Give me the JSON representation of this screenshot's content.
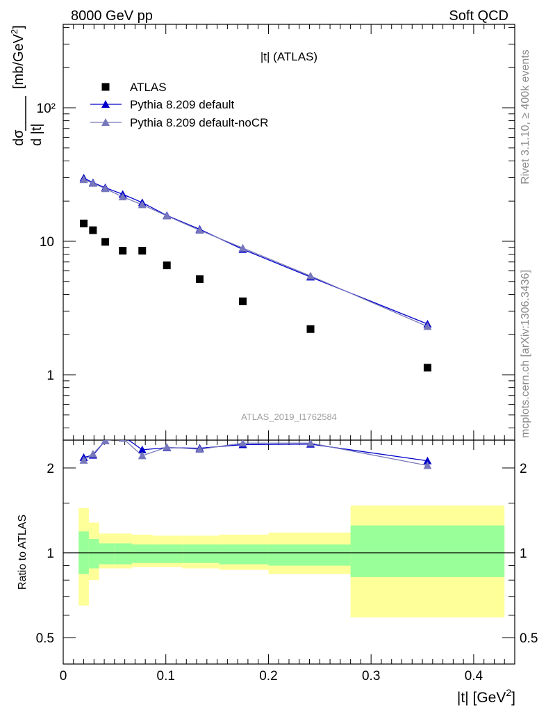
{
  "header": {
    "left": "8000 GeV pp",
    "right": "Soft QCD"
  },
  "side_labels": {
    "rivet": "Rivet 3.1.10, ≥ 400k events",
    "mcplots": "mcplots.cern.ch [arXiv:1306.3436]"
  },
  "chart_data": [
    {
      "type": "scatter",
      "panel": "main",
      "title": "|t| (ATLAS)",
      "watermark": "ATLAS_2019_I1762584",
      "ylabel": "dσ / d |t| [mb/GeV²]",
      "yscale": "log",
      "ylim": [
        0.3,
        500
      ],
      "xlim": [
        0,
        0.44
      ],
      "y_tick_labels": [
        "1",
        "10",
        "10²"
      ],
      "legend_position": "top-left",
      "series": [
        {
          "name": "ATLAS",
          "color": "#000000",
          "marker": "square",
          "x": [
            0.02,
            0.029,
            0.041,
            0.058,
            0.077,
            0.101,
            0.133,
            0.175,
            0.241,
            0.355
          ],
          "y": [
            13.6,
            12.1,
            9.9,
            8.5,
            8.5,
            6.6,
            5.2,
            3.55,
            2.2,
            1.13
          ]
        },
        {
          "name": "Pythia 8.209 default",
          "color": "#0000cc",
          "marker": "triangle",
          "x": [
            0.02,
            0.029,
            0.041,
            0.058,
            0.077,
            0.101,
            0.133,
            0.175,
            0.241,
            0.355
          ],
          "y": [
            29.8,
            27.5,
            25.2,
            22.5,
            19.5,
            15.6,
            12.3,
            8.7,
            5.4,
            2.4
          ]
        },
        {
          "name": "Pythia 8.209 default-noCR",
          "color": "#7777bb",
          "marker": "triangle",
          "x": [
            0.02,
            0.029,
            0.041,
            0.058,
            0.077,
            0.101,
            0.133,
            0.175,
            0.241,
            0.355
          ],
          "y": [
            29.0,
            27.2,
            24.8,
            21.5,
            18.8,
            15.5,
            12.1,
            8.9,
            5.5,
            2.3
          ]
        }
      ]
    },
    {
      "type": "line",
      "panel": "ratio",
      "xlabel": "|t| [GeV²]",
      "ylabel": "Ratio to ATLAS",
      "yscale": "log",
      "ylim": [
        0.4,
        2.5
      ],
      "xlim": [
        0,
        0.44
      ],
      "x_tick_labels": [
        "0",
        "0.1",
        "0.2",
        "0.3",
        "0.4"
      ],
      "y_tick_labels": [
        "0.5",
        "1",
        "2"
      ],
      "bins": {
        "edges": [
          0.015,
          0.025,
          0.035,
          0.05,
          0.067,
          0.087,
          0.116,
          0.152,
          0.2,
          0.28,
          0.43
        ],
        "inner_band": [
          [
            0.84,
            1.19
          ],
          [
            0.88,
            1.12
          ],
          [
            0.91,
            1.08
          ],
          [
            0.91,
            1.08
          ],
          [
            0.92,
            1.07
          ],
          [
            0.92,
            1.07
          ],
          [
            0.92,
            1.07
          ],
          [
            0.91,
            1.07
          ],
          [
            0.9,
            1.07
          ],
          [
            0.82,
            1.25
          ]
        ],
        "outer_band": [
          [
            0.65,
            1.44
          ],
          [
            0.8,
            1.28
          ],
          [
            0.88,
            1.17
          ],
          [
            0.88,
            1.17
          ],
          [
            0.89,
            1.16
          ],
          [
            0.89,
            1.15
          ],
          [
            0.88,
            1.15
          ],
          [
            0.87,
            1.16
          ],
          [
            0.84,
            1.18
          ],
          [
            0.59,
            1.47
          ]
        ]
      },
      "band_colors": {
        "inner": "#99ff99",
        "outer": "#ffff99"
      },
      "series": [
        {
          "name": "Pythia 8.209 default",
          "color": "#0000cc",
          "x": [
            0.02,
            0.029,
            0.041,
            0.058,
            0.077,
            0.101,
            0.133,
            0.175,
            0.241,
            0.355
          ],
          "y": [
            2.18,
            2.22,
            2.5,
            2.6,
            2.32,
            2.36,
            2.35,
            2.42,
            2.43,
            2.12
          ]
        },
        {
          "name": "Pythia 8.209 default-noCR",
          "color": "#7777bb",
          "x": [
            0.02,
            0.029,
            0.041,
            0.058,
            0.077,
            0.101,
            0.133,
            0.175,
            0.241,
            0.355
          ],
          "y": [
            2.13,
            2.24,
            2.5,
            2.55,
            2.21,
            2.37,
            2.33,
            2.45,
            2.45,
            2.04
          ]
        }
      ]
    }
  ]
}
